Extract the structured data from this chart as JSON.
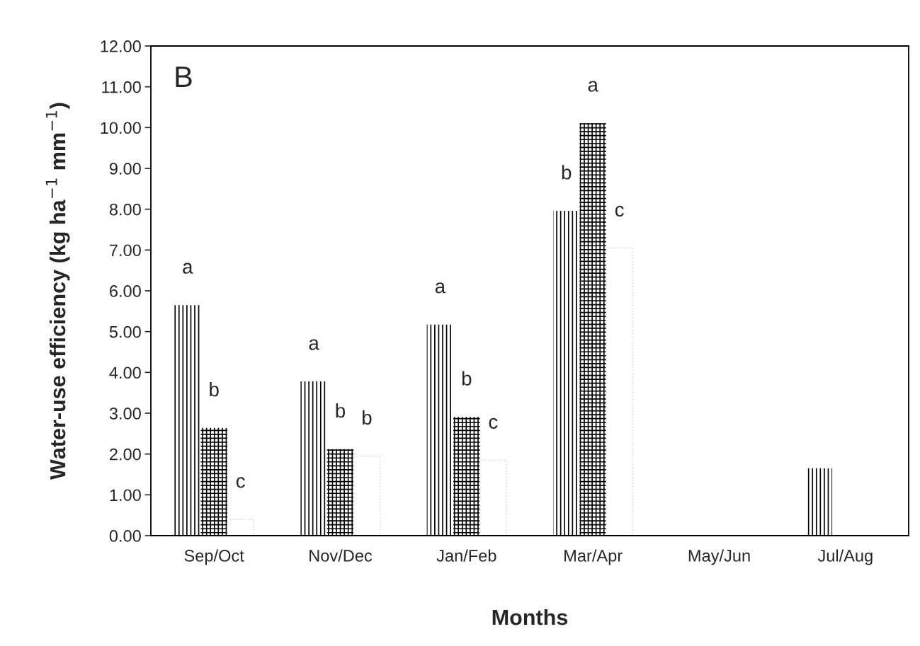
{
  "chart_data": {
    "type": "bar",
    "xlabel": "Months",
    "ylabel": "Water-use efficiency (kg ha$^{−1}$ mm$^{−1}$)",
    "categories": [
      "Sep/Oct",
      "Nov/Dec",
      "Jan/Feb",
      "Mar/Apr",
      "May/Jun",
      "Jul/Aug"
    ],
    "series": [
      {
        "color": "#000000",
        "values": [
          5.65,
          3.78,
          5.17,
          7.96,
          0,
          1.65
        ],
        "value_labels": [
          "a",
          "a",
          "a",
          "b",
          null,
          null
        ]
      },
      {
        "color": "#000000",
        "values": [
          2.64,
          2.12,
          2.91,
          10.11,
          0,
          0
        ],
        "value_labels": [
          "b",
          "b",
          "b",
          "a",
          null,
          null
        ]
      },
      {
        "color": "#d9d9d9",
        "values": [
          0.4,
          1.95,
          1.85,
          7.05,
          0,
          0
        ],
        "value_labels": [
          "c",
          "b",
          "c",
          "c",
          null,
          null
        ]
      }
    ],
    "ylim": [
      0,
      12
    ],
    "yticks": [
      {
        "value": 0,
        "label": "0.00"
      },
      {
        "value": 1,
        "label": "1.00"
      },
      {
        "value": 2,
        "label": "2.00"
      },
      {
        "value": 3,
        "label": "3.00"
      },
      {
        "value": 4,
        "label": "4.00"
      },
      {
        "value": 5,
        "label": "5.00"
      },
      {
        "value": 6,
        "label": "6.00"
      },
      {
        "value": 7,
        "label": "7.00"
      },
      {
        "value": 8,
        "label": "8.00"
      },
      {
        "value": 9,
        "label": "9.00"
      },
      {
        "value": 10,
        "label": "10.00"
      },
      {
        "value": 11,
        "label": "11.00"
      },
      {
        "value": 12,
        "label": "12.00"
      }
    ],
    "grid": false,
    "annotations": [
      "B"
    ]
  }
}
